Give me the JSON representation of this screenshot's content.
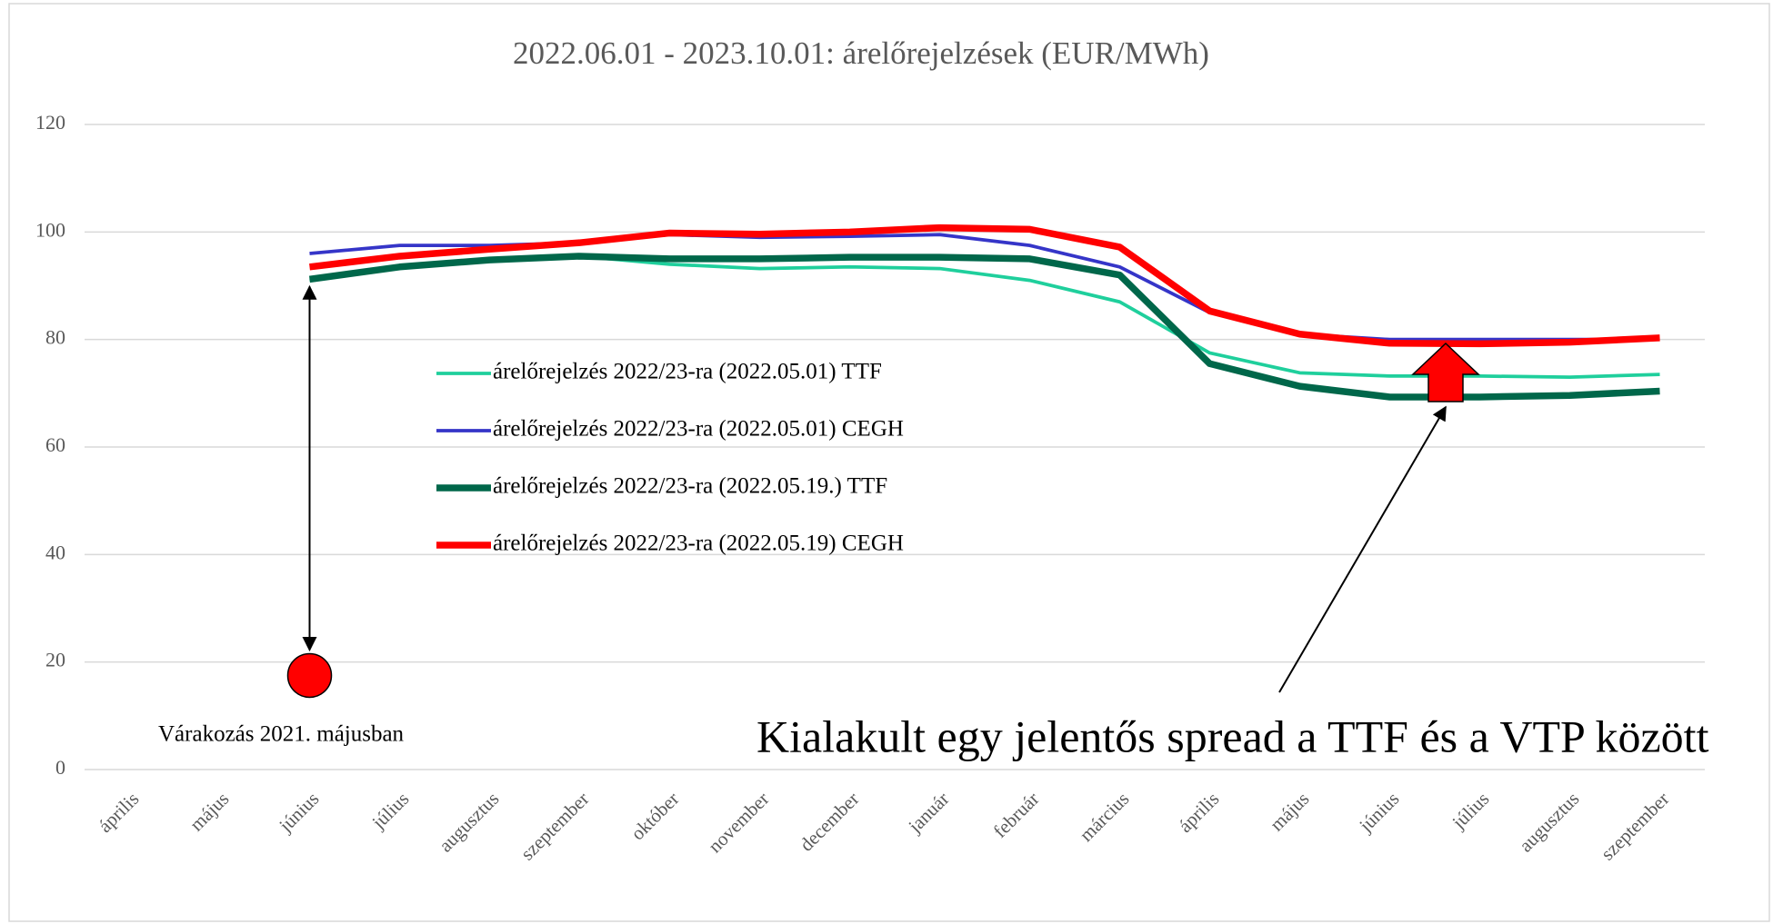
{
  "chart_data": {
    "type": "line",
    "title": "2022.06.01 - 2023.10.01: árelőrejelzések (EUR/MWh)",
    "categories": [
      "április",
      "május",
      "június",
      "július",
      "augusztus",
      "szeptember",
      "október",
      "november",
      "december",
      "január",
      "február",
      "március",
      "április",
      "május",
      "június",
      "július",
      "augusztus",
      "szeptember"
    ],
    "series": [
      {
        "name": "árelőrejelzés 2022/23-ra (2022.05.01) TTF",
        "color": "#1fcf9c",
        "width": 3,
        "values": [
          null,
          null,
          91,
          93.5,
          95,
          95.5,
          94,
          93.2,
          93.5,
          93.2,
          91,
          87,
          77.5,
          73.8,
          73.2,
          73.2,
          73,
          73.5
        ]
      },
      {
        "name": "árelőrejelzés 2022/23-ra (2022.05.01) CEGH",
        "color": "#3535c8",
        "width": 3,
        "values": [
          null,
          null,
          96,
          97.5,
          97.5,
          98,
          99.5,
          99,
          99.2,
          99.5,
          97.5,
          93.5,
          85,
          81,
          80,
          80,
          80,
          80
        ]
      },
      {
        "name": "árelőrejelzés 2022/23-ra (2022.05.19.) TTF",
        "color": "#00674a",
        "width": 6,
        "values": [
          null,
          null,
          91.2,
          93.5,
          94.8,
          95.5,
          95,
          95,
          95.3,
          95.3,
          95,
          92,
          75.5,
          71.3,
          69.3,
          69.3,
          69.6,
          70.4
        ]
      },
      {
        "name": "árelőrejelzés 2022/23-ra (2022.05.19) CEGH",
        "color": "#ff0000",
        "width": 6,
        "values": [
          null,
          null,
          93.5,
          95.5,
          96.8,
          98,
          99.8,
          99.6,
          100,
          100.8,
          100.5,
          97.2,
          85.3,
          81,
          79.3,
          79.2,
          79.5,
          80.3
        ]
      }
    ],
    "expectation": {
      "category": "június",
      "value": 17.5,
      "label": "Várakozás 2021. májusban",
      "color": "#ff0000"
    },
    "annotation": "Kialakult egy jelentős spread a TTF és a VTP között",
    "ylim": [
      0,
      120
    ],
    "yticks": [
      0,
      20,
      40,
      60,
      80,
      100,
      120
    ],
    "grid": true,
    "legend_position": "left"
  }
}
